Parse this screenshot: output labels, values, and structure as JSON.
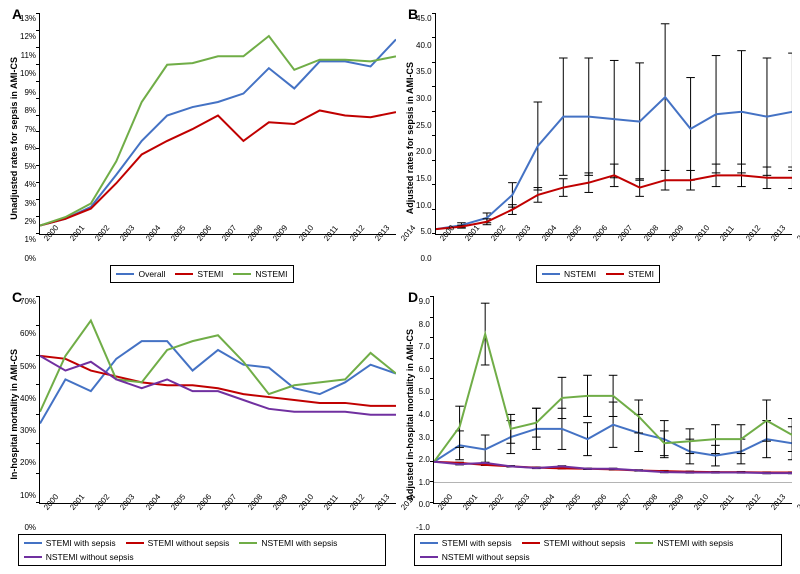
{
  "years": [
    "2000",
    "2001",
    "2002",
    "2003",
    "2004",
    "2005",
    "2006",
    "2007",
    "2008",
    "2009",
    "2010",
    "2011",
    "2012",
    "2013",
    "2014"
  ],
  "colors": {
    "blue": "#4472c4",
    "red": "#c00000",
    "green": "#70ad47",
    "purple": "#7030a0",
    "black": "#000000",
    "bg": "#ffffff"
  },
  "panels": {
    "A": {
      "label": "A",
      "ylabel": "Unadjusted rates for sepsis in AMI-CS",
      "ymin": 0,
      "ymax": 13,
      "yticks": [
        "0%",
        "1%",
        "2%",
        "3%",
        "4%",
        "5%",
        "6%",
        "7%",
        "8%",
        "9%",
        "10%",
        "11%",
        "12%",
        "13%"
      ],
      "series": [
        {
          "name": "Overall",
          "color": "#4472c4",
          "values": [
            0.5,
            0.9,
            1.6,
            3.5,
            5.5,
            7.0,
            7.5,
            7.8,
            8.3,
            9.8,
            8.6,
            10.2,
            10.2,
            9.9,
            11.5
          ]
        },
        {
          "name": "STEMI",
          "color": "#c00000",
          "values": [
            0.5,
            0.9,
            1.5,
            3.0,
            4.7,
            5.5,
            6.2,
            7.0,
            5.5,
            6.6,
            6.5,
            7.3,
            7.0,
            6.9,
            7.2
          ]
        },
        {
          "name": "NSTEMI",
          "color": "#70ad47",
          "values": [
            0.5,
            1.0,
            1.8,
            4.3,
            7.8,
            10.0,
            10.1,
            10.5,
            10.5,
            11.7,
            9.7,
            10.3,
            10.3,
            10.2,
            10.5
          ]
        }
      ],
      "legend": [
        {
          "label": "Overall",
          "color": "#4472c4"
        },
        {
          "label": "STEMI",
          "color": "#c00000"
        },
        {
          "label": "NSTEMI",
          "color": "#70ad47"
        }
      ]
    },
    "B": {
      "label": "B",
      "ylabel": "Adjusted rates for sepsis in AMI-CS",
      "ymin": 0,
      "ymax": 45,
      "yticks": [
        "0.0",
        "5.0",
        "10.0",
        "15.0",
        "20.0",
        "25.0",
        "30.0",
        "35.0",
        "40.0",
        "45.0"
      ],
      "series": [
        {
          "name": "NSTEMI",
          "color": "#4472c4",
          "values": [
            1.0,
            1.8,
            3.3,
            8.0,
            18.0,
            24.0,
            24.0,
            23.5,
            23.0,
            28.0,
            21.5,
            24.5,
            25.0,
            24.0,
            25.0
          ],
          "err": [
            0,
            0.5,
            1.0,
            2.5,
            9.0,
            12.0,
            12.0,
            12.0,
            12.0,
            15.0,
            10.5,
            12.0,
            12.5,
            12.0,
            12.0
          ]
        },
        {
          "name": "STEMI",
          "color": "#c00000",
          "values": [
            1.0,
            1.5,
            2.5,
            5.0,
            8.0,
            9.5,
            10.5,
            12.0,
            9.5,
            11.0,
            11.0,
            12.0,
            12.0,
            11.5,
            11.5
          ],
          "err": [
            0,
            0.3,
            0.6,
            1.0,
            1.5,
            1.8,
            2.0,
            2.3,
            1.8,
            2.0,
            2.0,
            2.3,
            2.3,
            2.2,
            2.2
          ]
        }
      ],
      "legend": [
        {
          "label": "NSTEMI",
          "color": "#4472c4"
        },
        {
          "label": "STEMI",
          "color": "#c00000"
        }
      ]
    },
    "C": {
      "label": "C",
      "ylabel": "In-hospital mortality in AMI-CS",
      "ymin": 0,
      "ymax": 70,
      "yticks": [
        "0%",
        "10%",
        "20%",
        "30%",
        "40%",
        "50%",
        "60%",
        "70%"
      ],
      "series": [
        {
          "name": "STEMI with sepsis",
          "color": "#4472c4",
          "values": [
            27,
            42,
            38,
            49,
            55,
            55,
            45,
            52,
            47,
            46,
            39,
            37,
            41,
            47,
            44
          ]
        },
        {
          "name": "STEMI without sepsis",
          "color": "#c00000",
          "values": [
            50,
            49,
            45,
            43,
            41,
            40,
            40,
            39,
            37,
            36,
            35,
            34,
            34,
            33,
            33
          ]
        },
        {
          "name": "NSTEMI with sepsis",
          "color": "#70ad47",
          "values": [
            31,
            50,
            62,
            42,
            41,
            52,
            55,
            57,
            48,
            37,
            40,
            41,
            42,
            51,
            44
          ]
        },
        {
          "name": "NSTEMI without sepsis",
          "color": "#7030a0",
          "values": [
            50,
            45,
            48,
            42,
            39,
            42,
            38,
            38,
            35,
            32,
            31,
            31,
            31,
            30,
            30
          ]
        }
      ],
      "legend": [
        {
          "label": "STEMI with sepsis",
          "color": "#4472c4"
        },
        {
          "label": "STEMI without sepsis",
          "color": "#c00000"
        },
        {
          "label": "NSTEMI with sepsis",
          "color": "#70ad47"
        },
        {
          "label": "NSTEMI without sepsis",
          "color": "#7030a0"
        }
      ]
    },
    "D": {
      "label": "D",
      "ylabel": "Adjusted in-hospital mortality in AMI-CS",
      "ymin": -1,
      "ymax": 9,
      "yticks": [
        "-1.0",
        "0.0",
        "1.0",
        "2.0",
        "3.0",
        "4.0",
        "5.0",
        "6.0",
        "7.0",
        "8.0",
        "9.0"
      ],
      "series": [
        {
          "name": "STEMI with sepsis",
          "color": "#4472c4",
          "values": [
            1.0,
            1.8,
            1.6,
            2.2,
            2.6,
            2.6,
            2.1,
            2.8,
            2.4,
            2.1,
            1.5,
            1.3,
            1.5,
            2.1,
            1.9
          ],
          "err": [
            0,
            0.7,
            0.7,
            0.8,
            1.0,
            1.0,
            0.8,
            1.1,
            0.9,
            0.9,
            0.6,
            0.5,
            0.6,
            0.9,
            0.8
          ]
        },
        {
          "name": "STEMI without sepsis",
          "color": "#c00000",
          "values": [
            1.0,
            0.95,
            0.85,
            0.78,
            0.72,
            0.68,
            0.66,
            0.63,
            0.58,
            0.55,
            0.52,
            0.5,
            0.5,
            0.48,
            0.48
          ],
          "err": [
            0,
            0.03,
            0.03,
            0.03,
            0.03,
            0.03,
            0.03,
            0.03,
            0.03,
            0.03,
            0.03,
            0.03,
            0.03,
            0.03,
            0.03
          ]
        },
        {
          "name": "NSTEMI with sepsis",
          "color": "#70ad47",
          "values": [
            1.0,
            2.7,
            7.2,
            2.6,
            2.9,
            4.1,
            4.2,
            4.2,
            3.2,
            1.9,
            2.0,
            2.1,
            2.1,
            3.0,
            2.3
          ],
          "err": [
            0,
            1.0,
            1.5,
            0.7,
            0.7,
            1.0,
            1.0,
            1.0,
            0.8,
            0.6,
            0.6,
            0.7,
            0.7,
            1.0,
            0.8
          ]
        },
        {
          "name": "NSTEMI without sepsis",
          "color": "#7030a0",
          "values": [
            1.0,
            0.88,
            0.95,
            0.78,
            0.7,
            0.78,
            0.66,
            0.66,
            0.58,
            0.5,
            0.48,
            0.48,
            0.48,
            0.45,
            0.45
          ],
          "err": [
            0,
            0.03,
            0.03,
            0.03,
            0.03,
            0.03,
            0.03,
            0.03,
            0.03,
            0.03,
            0.03,
            0.03,
            0.03,
            0.03,
            0.03
          ]
        }
      ],
      "legend": [
        {
          "label": "STEMI with sepsis",
          "color": "#4472c4"
        },
        {
          "label": "STEMI without sepsis",
          "color": "#c00000"
        },
        {
          "label": "NSTEMI with sepsis",
          "color": "#70ad47"
        },
        {
          "label": "NSTEMI without sepsis",
          "color": "#7030a0"
        }
      ]
    }
  }
}
